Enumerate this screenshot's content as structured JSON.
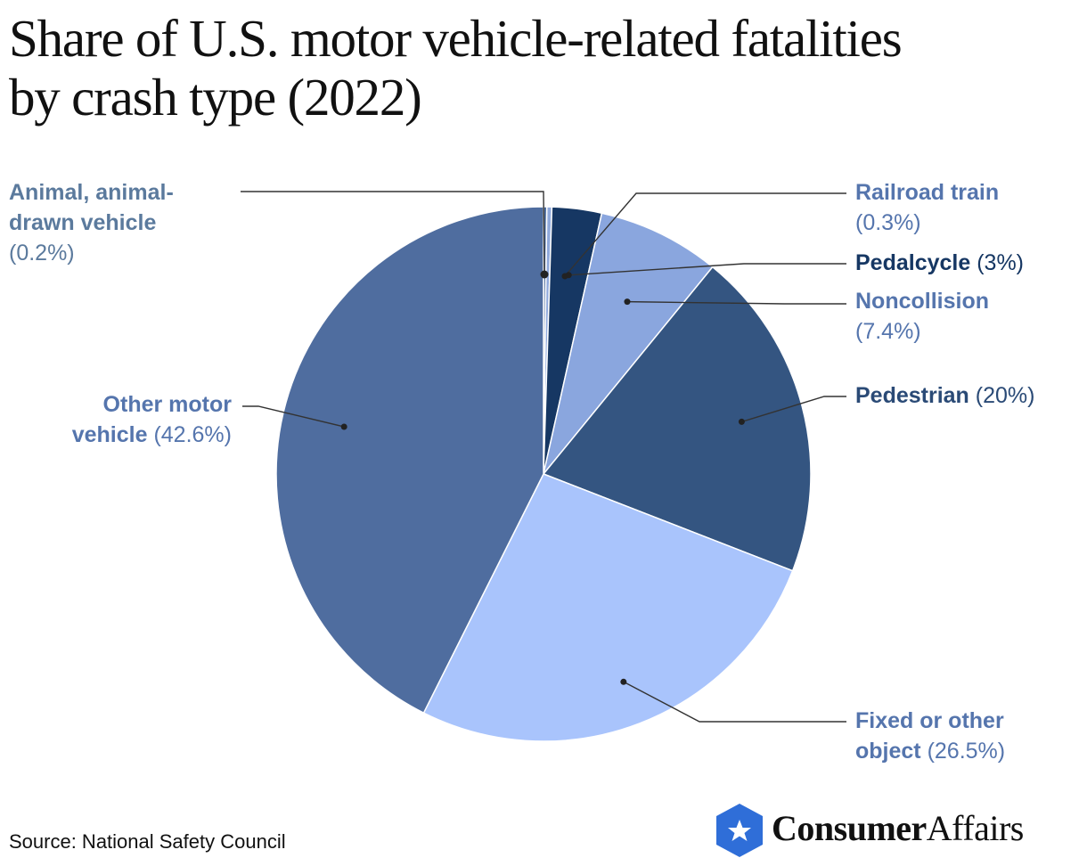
{
  "title": {
    "line1": "Share of U.S. motor vehicle-related fatalities",
    "line2": "by crash type (2022)"
  },
  "chart_data": {
    "type": "pie",
    "title": "Share of U.S. motor vehicle-related fatalities by crash type (2022)",
    "start_angle_deg": 0,
    "direction": "clockwise",
    "slices": [
      {
        "key": "animal",
        "label": "Animal, animal-drawn vehicle",
        "label_line1": "Animal, animal-",
        "label_line2": "drawn vehicle",
        "value": 0.2,
        "value_text": "(0.2%)",
        "color": "#4f6d9c",
        "label_color": "#5b7a9d"
      },
      {
        "key": "railroad",
        "label": "Railroad train",
        "value": 0.3,
        "value_text": "(0.3%)",
        "color": "#8fa9dc",
        "label_color": "#5575ad"
      },
      {
        "key": "pedalcycle",
        "label": "Pedalcycle",
        "value": 3,
        "value_text": "(3%)",
        "color": "#163763",
        "label_color": "#163763"
      },
      {
        "key": "noncollision",
        "label": "Noncollision",
        "value": 7.4,
        "value_text": "(7.4%)",
        "color": "#8aa6de",
        "label_color": "#5575ad"
      },
      {
        "key": "pedestrian",
        "label": "Pedestrian",
        "value": 20,
        "value_text": "(20%)",
        "color": "#345581",
        "label_color": "#2a4a76"
      },
      {
        "key": "fixed",
        "label": "Fixed or other object",
        "label_line1": "Fixed or other",
        "label_line2": "object",
        "value": 26.5,
        "value_text": "(26.5%)",
        "color": "#a9c4fc",
        "label_color": "#5575ad"
      },
      {
        "key": "othermotor",
        "label": "Other motor vehicle",
        "label_line1": "Other motor",
        "label_line2": "vehicle",
        "value": 42.6,
        "value_text": "(42.6%)",
        "color": "#4f6d9f",
        "label_color": "#5575ad"
      }
    ]
  },
  "source": "Source: National Safety Council",
  "logo": {
    "word1": "Consumer",
    "word2": "Affairs",
    "icon": "star-shield-icon",
    "color": "#2f6ed8"
  }
}
